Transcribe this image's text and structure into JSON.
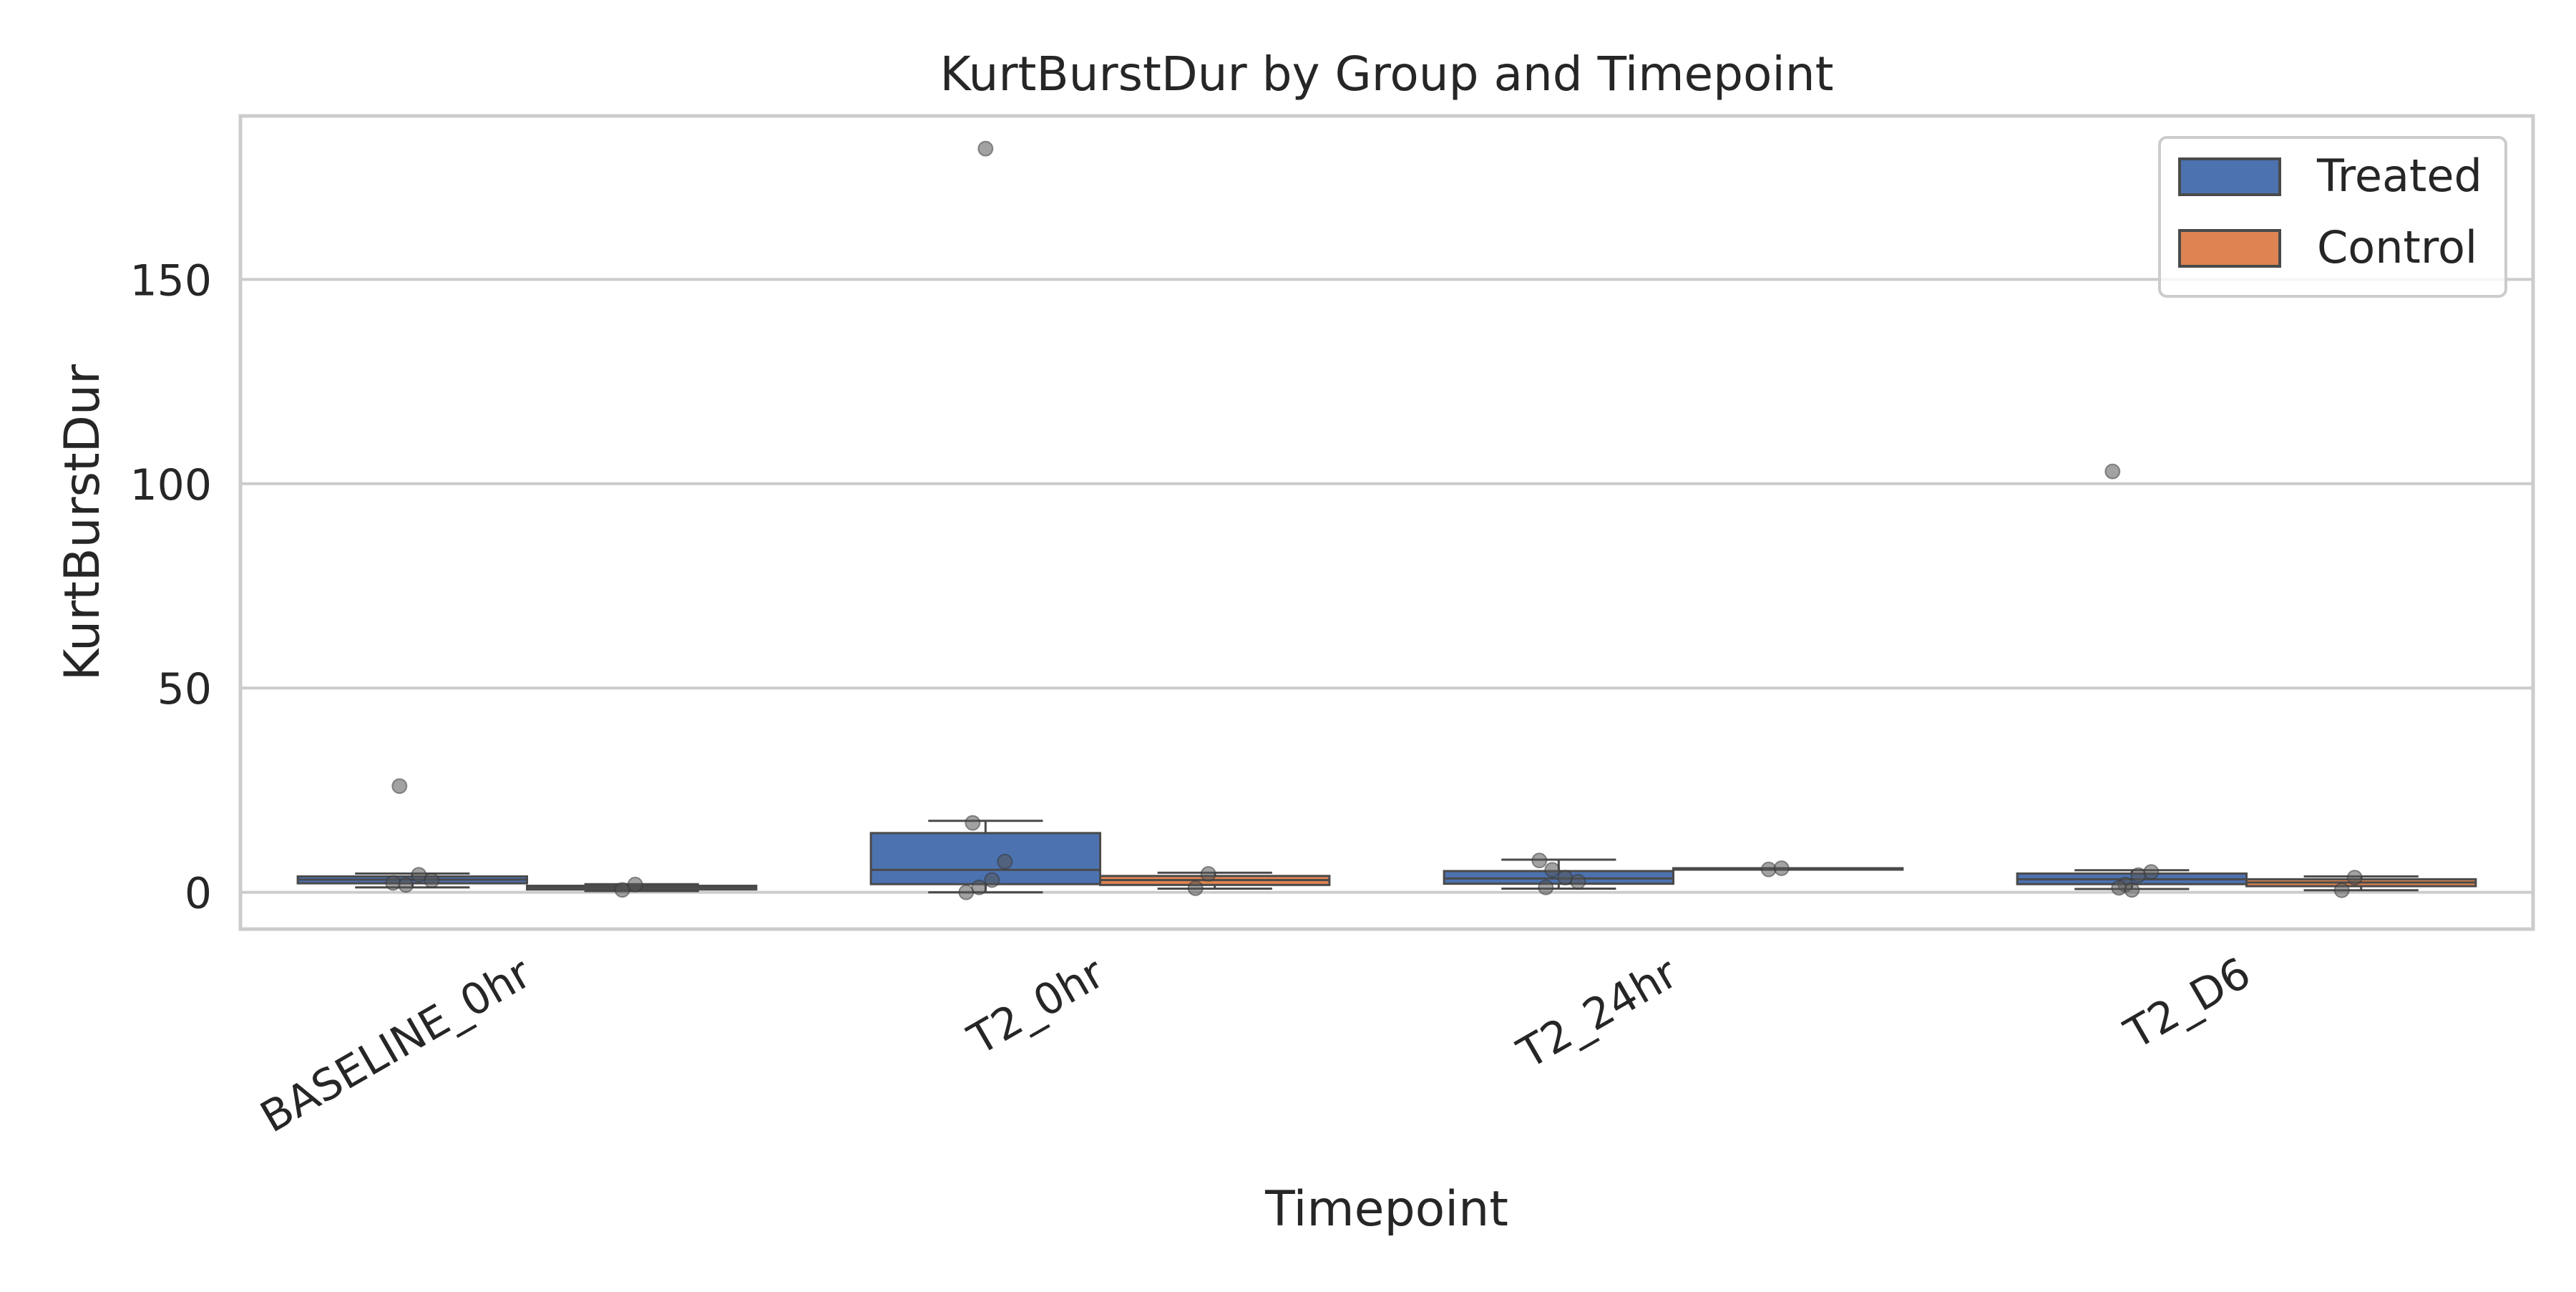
{
  "chart_data": {
    "type": "box",
    "title": "KurtBurstDur by Group and Timepoint",
    "xlabel": "Timepoint",
    "ylabel": "KurtBurstDur",
    "ylim": [
      -9,
      190
    ],
    "yticks": [
      0,
      50,
      100,
      150
    ],
    "grid": "horizontal",
    "legend_position": "top-right",
    "categories": [
      "BASELINE_0hr",
      "T2_0hr",
      "T2_24hr",
      "T2_D6"
    ],
    "series": [
      {
        "name": "Treated",
        "color": "#4c72b0",
        "boxes": [
          {
            "category": "BASELINE_0hr",
            "whislo": 1.2,
            "q1": 2.2,
            "median": 3.1,
            "q3": 3.9,
            "whishi": 4.6,
            "fliers": [
              26
            ]
          },
          {
            "category": "T2_0hr",
            "whislo": 0.0,
            "q1": 2.0,
            "median": 5.5,
            "q3": 14.5,
            "whishi": 17.5,
            "fliers": [
              182
            ]
          },
          {
            "category": "T2_24hr",
            "whislo": 0.9,
            "q1": 2.1,
            "median": 3.4,
            "q3": 5.2,
            "whishi": 8.0,
            "fliers": []
          },
          {
            "category": "T2_D6",
            "whislo": 0.8,
            "q1": 2.0,
            "median": 3.2,
            "q3": 4.6,
            "whishi": 5.4,
            "fliers": [
              103
            ]
          }
        ],
        "points": [
          [
            2.3,
            1.8,
            4.3,
            2.9,
            26
          ],
          [
            0.0,
            1.2,
            3.0,
            7.5,
            17,
            182
          ],
          [
            7.8,
            5.5,
            3.6,
            2.6,
            1.2
          ],
          [
            103,
            1.9,
            4.2,
            5.0,
            1.1,
            0.6
          ]
        ]
      },
      {
        "name": "Control",
        "color": "#dd8452",
        "boxes": [
          {
            "category": "BASELINE_0hr",
            "whislo": 0.3,
            "q1": 0.7,
            "median": 1.2,
            "q3": 1.6,
            "whishi": 2.0,
            "fliers": []
          },
          {
            "category": "T2_0hr",
            "whislo": 0.9,
            "q1": 1.8,
            "median": 3.0,
            "q3": 4.0,
            "whishi": 4.8,
            "fliers": []
          },
          {
            "category": "T2_24hr",
            "whislo": 5.6,
            "q1": 5.6,
            "median": 5.8,
            "q3": 5.9,
            "whishi": 5.9,
            "fliers": []
          },
          {
            "category": "T2_D6",
            "whislo": 0.5,
            "q1": 1.5,
            "median": 2.4,
            "q3": 3.2,
            "whishi": 3.9,
            "fliers": []
          }
        ],
        "points": [
          [
            0.6,
            1.9
          ],
          [
            1.0,
            4.5
          ],
          [
            5.6,
            5.9
          ],
          [
            0.5,
            3.6
          ]
        ]
      }
    ]
  }
}
